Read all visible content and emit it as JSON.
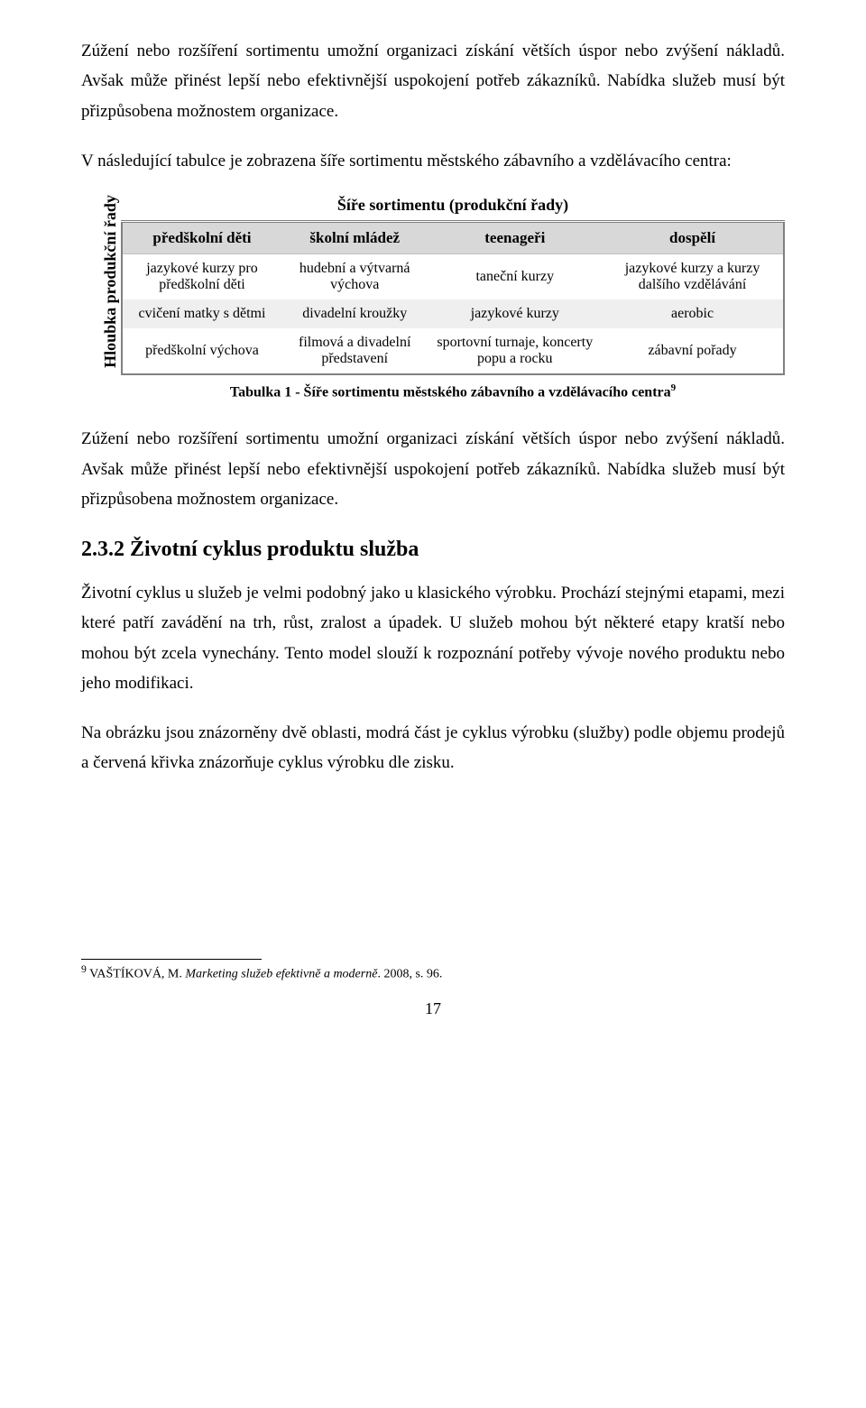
{
  "colors": {
    "page_background": "#ffffff",
    "text": "#000000",
    "table_border": "#808080",
    "header_row_bg": "#d8d8d8",
    "band_row_bg": "#efefef",
    "plain_row_bg": "#ffffff",
    "divider": "#bfbfbf"
  },
  "typography": {
    "body_font_family": "Times New Roman",
    "body_font_size_pt": 12,
    "heading_font_size_pt": 14,
    "table_font_size_pt": 11,
    "caption_font_size_pt": 11
  },
  "paragraphs": {
    "p1": "Zúžení nebo rozšíření sortimentu umožní organizaci získání větších úspor nebo zvýšení nákladů. Avšak může přinést lepší nebo efektivnější uspokojení potřeb zákazníků. Nabídka služeb musí být přizpůsobena možnostem organizace.",
    "p2": "V následující tabulce je zobrazena šíře sortimentu městského zábavního a vzdělávacího centra:",
    "p3": "Zúžení nebo rozšíření sortimentu umožní organizaci získání větších úspor nebo zvýšení nákladů. Avšak může přinést lepší nebo efektivnější uspokojení potřeb zákazníků. Nabídka služeb musí být přizpůsobena možnostem organizace.",
    "p4": "Životní cyklus u služeb je velmi podobný jako u klasického výrobku. Prochází stejnými etapami, mezi které patří zavádění na trh, růst, zralost a úpadek. U služeb mohou být některé etapy kratší nebo mohou být zcela vynechány. Tento model slouží k rozpoznání potřeby vývoje nového produktu nebo jeho modifikaci.",
    "p5": "Na obrázku jsou znázorněny dvě oblasti, modrá část je cyklus výrobku (služby) podle objemu prodejů a červená křivka znázorňuje cyklus výrobku dle zisku."
  },
  "heading": {
    "number": "2.3.2",
    "text": "Životní cyklus produktu služba"
  },
  "table": {
    "type": "table",
    "title": "Šíře sortimentu (produkční řady)",
    "vertical_axis_label": "Hloubka produkční řady",
    "columns": [
      "předškolní děti",
      "školní mládež",
      "teenageři",
      "dospělí"
    ],
    "rows": [
      [
        "jazykové kurzy pro předškolní děti",
        "hudební a výtvarná výchova",
        "taneční kurzy",
        "jazykové kurzy a kurzy dalšího vzdělávání"
      ],
      [
        "cvičení matky s dětmi",
        "divadelní kroužky",
        "jazykové kurzy",
        "aerobic"
      ],
      [
        "předškolní výchova",
        "filmová a divadelní představení",
        "sportovní turnaje, koncerty popu a rocku",
        "zábavní pořady"
      ]
    ],
    "header_bg": "#d8d8d8",
    "band_bg": "#efefef",
    "border_color": "#808080",
    "column_count": 4,
    "row_count": 3,
    "caption_prefix": "Tabulka 1 - ",
    "caption_text": "Šíře sortimentu městského zábavního a vzdělávacího centra",
    "caption_super": "9"
  },
  "footnote": {
    "marker": "9",
    "author": "VAŠTÍKOVÁ, M.",
    "title_italic": "Marketing služeb efektivně a moderně",
    "suffix": ". 2008, s. 96."
  },
  "page_number": "17"
}
